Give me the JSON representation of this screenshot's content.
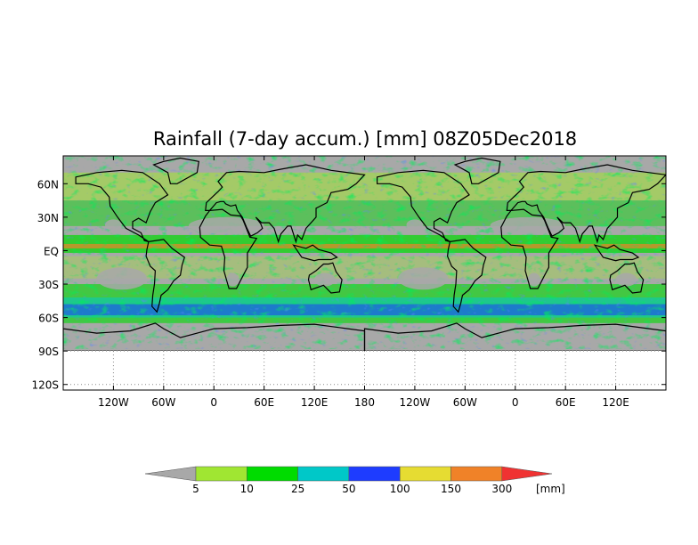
{
  "title": "Rainfall (7-day accum.) [mm] 08Z05Dec2018",
  "map": {
    "lat_labels": [
      "60N",
      "30N",
      "EQ",
      "30S",
      "60S",
      "90S",
      "120S"
    ],
    "lat_values": [
      60,
      30,
      0,
      -30,
      -60,
      -90,
      -120
    ],
    "lon_labels": [
      "120W",
      "60W",
      "0",
      "60E",
      "120E",
      "180",
      "120W",
      "60W",
      "0",
      "60E",
      "120E"
    ],
    "lon_values": [
      -120,
      -60,
      0,
      60,
      120,
      180,
      240,
      300,
      360,
      420,
      480
    ],
    "lon_range": [
      -180,
      540
    ],
    "lat_range": [
      -125,
      85
    ],
    "data_lat_bottom": -90,
    "no_rain_color": "#a8a8a8",
    "coastline_color": "#000000"
  },
  "legend": {
    "unit": "[mm]",
    "thresholds": [
      "5",
      "10",
      "25",
      "50",
      "100",
      "150",
      "300"
    ],
    "colors": [
      "#a8a8a8",
      "#a0e632",
      "#00dc00",
      "#00c8c8",
      "#1e3cff",
      "#e6dc32",
      "#f08228",
      "#f03232"
    ]
  }
}
